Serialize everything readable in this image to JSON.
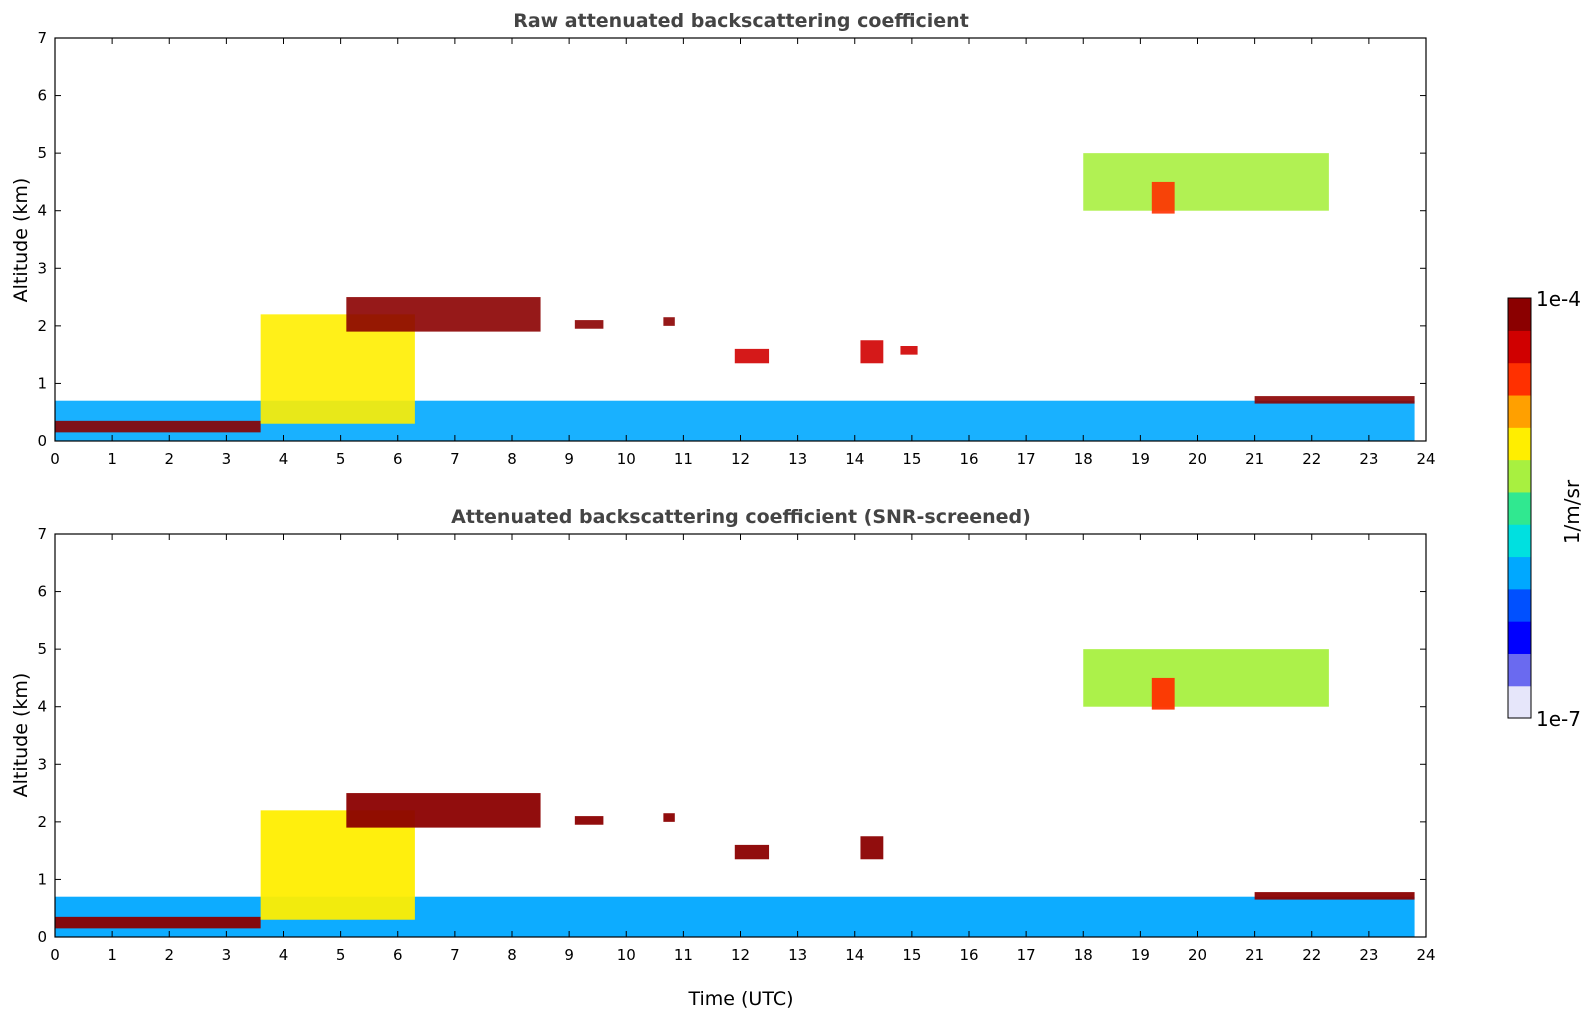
{
  "chart_data": [
    {
      "type": "heatmap",
      "title": "Raw attenuated backscattering coefficient",
      "xlabel": "",
      "ylabel": "Altitude (km)",
      "xlim": [
        0,
        24
      ],
      "ylim": [
        0,
        7
      ],
      "xticks": [
        "0",
        "1",
        "2",
        "3",
        "4",
        "5",
        "6",
        "7",
        "8",
        "9",
        "10",
        "11",
        "12",
        "13",
        "14",
        "15",
        "16",
        "17",
        "18",
        "19",
        "20",
        "21",
        "22",
        "23",
        "24"
      ],
      "yticks": [
        "0",
        "1",
        "2",
        "3",
        "4",
        "5",
        "6",
        "7"
      ],
      "data_end_hour": 23.8,
      "features": [
        {
          "name": "boundary-layer-aerosol",
          "x": [
            0,
            23.8
          ],
          "y": [
            0,
            0.7
          ],
          "level": 0.3
        },
        {
          "name": "early-aerosol-layer",
          "x": [
            0,
            3.6
          ],
          "y": [
            0.15,
            0.35
          ],
          "level": 0.97
        },
        {
          "name": "rising-layer",
          "x": [
            3.6,
            6.3
          ],
          "y": [
            0.3,
            2.2
          ],
          "level": 0.65
        },
        {
          "name": "cloud-layer-2km",
          "x": [
            5.1,
            8.5
          ],
          "y": [
            1.9,
            2.5
          ],
          "level": 0.98
        },
        {
          "name": "cloud-patch",
          "x": [
            9.1,
            9.6
          ],
          "y": [
            1.95,
            2.1
          ],
          "level": 0.98
        },
        {
          "name": "cloud-patch",
          "x": [
            10.65,
            10.85
          ],
          "y": [
            2.0,
            2.15
          ],
          "level": 0.98
        },
        {
          "name": "cloud-patch",
          "x": [
            11.9,
            12.5
          ],
          "y": [
            1.35,
            1.6
          ],
          "level": 0.95
        },
        {
          "name": "cloud-patch",
          "x": [
            14.1,
            14.5
          ],
          "y": [
            1.35,
            1.75
          ],
          "level": 0.95
        },
        {
          "name": "cloud-patch",
          "x": [
            14.8,
            15.1
          ],
          "y": [
            1.5,
            1.65
          ],
          "level": 0.95
        },
        {
          "name": "mid-level-aerosol",
          "x": [
            18.0,
            22.3
          ],
          "y": [
            4.0,
            5.0
          ],
          "level": 0.55
        },
        {
          "name": "mid-level-core",
          "x": [
            19.2,
            19.6
          ],
          "y": [
            3.95,
            4.5
          ],
          "level": 0.85
        },
        {
          "name": "low-cloud-evening",
          "x": [
            21.0,
            23.8
          ],
          "y": [
            0.65,
            0.78
          ],
          "level": 0.98
        }
      ]
    },
    {
      "type": "heatmap",
      "title": "Attenuated backscattering coefficient (SNR-screened)",
      "xlabel": "Time (UTC)",
      "ylabel": "Altitude (km)",
      "xlim": [
        0,
        24
      ],
      "ylim": [
        0,
        7
      ],
      "xticks": [
        "0",
        "1",
        "2",
        "3",
        "4",
        "5",
        "6",
        "7",
        "8",
        "9",
        "10",
        "11",
        "12",
        "13",
        "14",
        "15",
        "16",
        "17",
        "18",
        "19",
        "20",
        "21",
        "22",
        "23",
        "24"
      ],
      "yticks": [
        "0",
        "1",
        "2",
        "3",
        "4",
        "5",
        "6",
        "7"
      ],
      "data_end_hour": 23.8,
      "features": [
        {
          "name": "boundary-layer-aerosol",
          "x": [
            0,
            23.8
          ],
          "y": [
            0,
            0.7
          ],
          "level": 0.3
        },
        {
          "name": "early-aerosol-layer",
          "x": [
            0,
            3.6
          ],
          "y": [
            0.15,
            0.35
          ],
          "level": 1.0
        },
        {
          "name": "rising-layer",
          "x": [
            3.6,
            6.3
          ],
          "y": [
            0.3,
            2.2
          ],
          "level": 0.65
        },
        {
          "name": "cloud-layer-2km",
          "x": [
            5.1,
            8.5
          ],
          "y": [
            1.9,
            2.5
          ],
          "level": 1.0
        },
        {
          "name": "cloud-patch",
          "x": [
            9.1,
            9.6
          ],
          "y": [
            1.95,
            2.1
          ],
          "level": 1.0
        },
        {
          "name": "cloud-patch",
          "x": [
            10.65,
            10.85
          ],
          "y": [
            2.0,
            2.15
          ],
          "level": 1.0
        },
        {
          "name": "cloud-patch",
          "x": [
            11.9,
            12.5
          ],
          "y": [
            1.35,
            1.6
          ],
          "level": 1.0
        },
        {
          "name": "cloud-patch",
          "x": [
            14.1,
            14.5
          ],
          "y": [
            1.35,
            1.75
          ],
          "level": 1.0
        },
        {
          "name": "mid-level-aerosol",
          "x": [
            18.0,
            22.3
          ],
          "y": [
            4.0,
            5.0
          ],
          "level": 0.55
        },
        {
          "name": "mid-level-core",
          "x": [
            19.2,
            19.6
          ],
          "y": [
            3.95,
            4.5
          ],
          "level": 0.85
        },
        {
          "name": "low-cloud-evening",
          "x": [
            21.0,
            23.8
          ],
          "y": [
            0.65,
            0.78
          ],
          "level": 1.0
        }
      ]
    }
  ],
  "colorbar": {
    "max_label": "1e-4",
    "min_label": "1e-7",
    "unit_label": "1/m/sr",
    "colors": [
      "#e6e6fa",
      "#6a6af0",
      "#0000ff",
      "#0050ff",
      "#00a8ff",
      "#00e0e0",
      "#30e890",
      "#a8f040",
      "#ffee00",
      "#ffa000",
      "#ff3000",
      "#d00000",
      "#8b0000"
    ]
  }
}
